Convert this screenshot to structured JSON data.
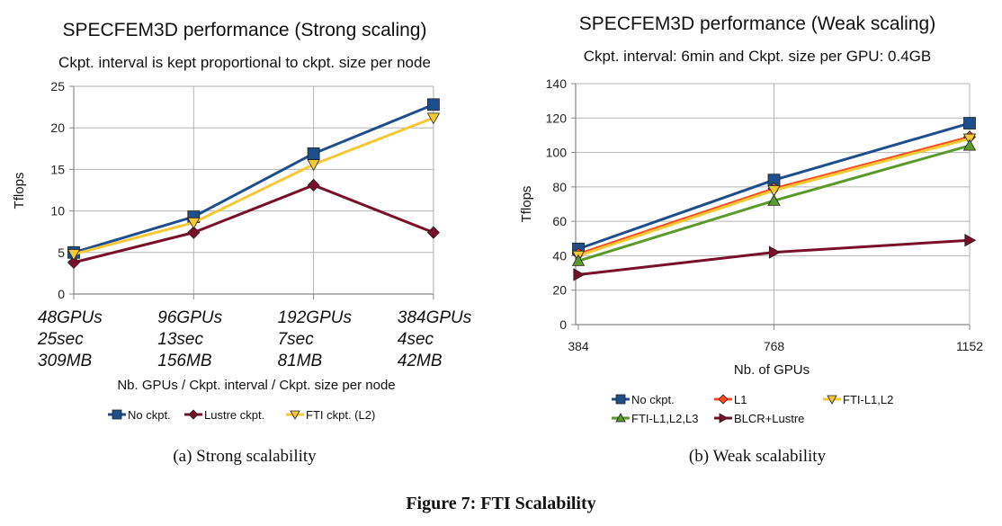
{
  "figure_caption": "Figure 7: FTI Scalability",
  "chart_data": [
    {
      "type": "line",
      "title": "SPECFEM3D performance (Strong scaling)",
      "subtitle": "Ckpt. interval is kept proportional to ckpt. size per node",
      "xlabel": "Nb. GPUs / Ckpt. interval / Ckpt. size per node",
      "ylabel": "Tflops",
      "ylim": [
        0,
        25
      ],
      "yticks": [
        0,
        5,
        10,
        15,
        20,
        25
      ],
      "grid": true,
      "legend_position": "bottom",
      "categories": [
        [
          "48GPUs",
          "25sec",
          "309MB"
        ],
        [
          "96GPUs",
          "13sec",
          "156MB"
        ],
        [
          "192GPUs",
          "7sec",
          "81MB"
        ],
        [
          "384GPUs",
          "4sec",
          "42MB"
        ]
      ],
      "series": [
        {
          "name": "No ckpt.",
          "color": "#1f4e8c",
          "marker": "square",
          "values": [
            5.0,
            9.3,
            16.9,
            22.8
          ]
        },
        {
          "name": "Lustre ckpt.",
          "color": "#7a0f2a",
          "marker": "diamond",
          "values": [
            3.8,
            7.4,
            13.1,
            7.4
          ]
        },
        {
          "name": "FTI ckpt. (L2)",
          "color": "#f5c836",
          "marker": "triangle-down",
          "values": [
            4.8,
            8.6,
            15.6,
            21.2
          ]
        }
      ],
      "caption": "(a) Strong scalability"
    },
    {
      "type": "line",
      "title": "SPECFEM3D performance (Weak scaling)",
      "subtitle": "Ckpt. interval: 6min and Ckpt. size per GPU: 0.4GB",
      "xlabel": "Nb. of GPUs",
      "ylabel": "Tflops",
      "ylim": [
        0,
        140
      ],
      "yticks": [
        0,
        20,
        40,
        60,
        80,
        100,
        120,
        140
      ],
      "grid": true,
      "legend_position": "bottom",
      "categories": [
        "384",
        "768",
        "1152"
      ],
      "series": [
        {
          "name": "No ckpt.",
          "color": "#1f4e8c",
          "marker": "square",
          "values": [
            44,
            84,
            117
          ]
        },
        {
          "name": "L1",
          "color": "#ff4a1c",
          "marker": "diamond",
          "values": [
            41,
            79,
            109
          ]
        },
        {
          "name": "FTI-L1,L2",
          "color": "#f5c836",
          "marker": "triangle-down",
          "values": [
            40,
            78,
            108
          ]
        },
        {
          "name": "FTI-L1,L2,L3",
          "color": "#5a9a2a",
          "marker": "triangle-up",
          "values": [
            37,
            72,
            104
          ]
        },
        {
          "name": "BLCR+Lustre",
          "color": "#7a0f2a",
          "marker": "triangle-right",
          "values": [
            29,
            42,
            49
          ]
        }
      ],
      "caption": "(b) Weak scalability"
    }
  ]
}
